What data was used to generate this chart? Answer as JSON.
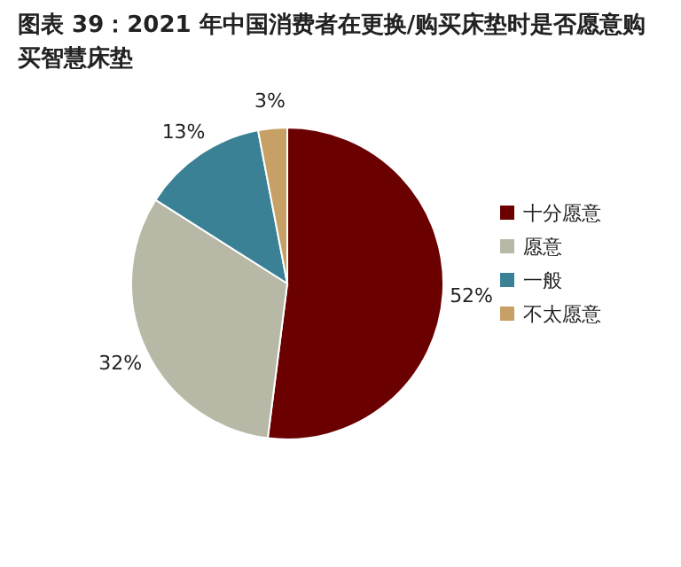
{
  "chart_data": {
    "type": "pie",
    "title": "图表 39：2021 年中国消费者在更换/购买床垫时是否愿意购买智慧床垫",
    "categories": [
      "十分愿意",
      "愿意",
      "一般",
      "不太愿意"
    ],
    "values": [
      52,
      32,
      13,
      3
    ],
    "colors": [
      "#6b0000",
      "#b8b8a6",
      "#3b8196",
      "#c6a064"
    ],
    "value_labels": [
      "52%",
      "32%",
      "13%",
      "3%"
    ],
    "legend": "right"
  }
}
